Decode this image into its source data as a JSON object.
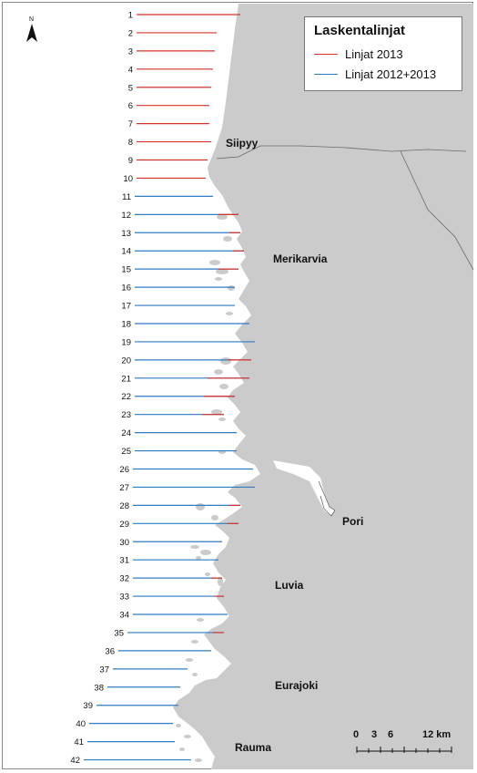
{
  "legend": {
    "title": "Laskentalinjat",
    "items": [
      {
        "label": "Linjat 2013",
        "color": "#d9342b"
      },
      {
        "label": "Linjat 2012+2013",
        "color": "#2f7bc4"
      }
    ]
  },
  "north_label": "N",
  "scale": {
    "ticks": [
      "0",
      "3",
      "6",
      "12 km"
    ]
  },
  "places": [
    {
      "name": "Siipyy"
    },
    {
      "name": "Merikarvia"
    },
    {
      "name": "Pori"
    },
    {
      "name": "Luvia"
    },
    {
      "name": "Eurajoki"
    },
    {
      "name": "Rauma"
    }
  ],
  "lines": [
    {
      "label": "1",
      "category": "2013"
    },
    {
      "label": "2",
      "category": "2013"
    },
    {
      "label": "3",
      "category": "2013"
    },
    {
      "label": "4",
      "category": "2013"
    },
    {
      "label": "5",
      "category": "2013"
    },
    {
      "label": "6",
      "category": "2013"
    },
    {
      "label": "7",
      "category": "2013"
    },
    {
      "label": "8",
      "category": "2013"
    },
    {
      "label": "9",
      "category": "2013"
    },
    {
      "label": "10",
      "category": "2013"
    },
    {
      "label": "11",
      "category": "2012+2013"
    },
    {
      "label": "12",
      "category": "2012+2013"
    },
    {
      "label": "13",
      "category": "2012+2013"
    },
    {
      "label": "14",
      "category": "2012+2013"
    },
    {
      "label": "15",
      "category": "2012+2013"
    },
    {
      "label": "16",
      "category": "2012+2013"
    },
    {
      "label": "17",
      "category": "2012+2013"
    },
    {
      "label": "18",
      "category": "2012+2013"
    },
    {
      "label": "19",
      "category": "2012+2013"
    },
    {
      "label": "20",
      "category": "2012+2013"
    },
    {
      "label": "21",
      "category": "2012+2013"
    },
    {
      "label": "22",
      "category": "2012+2013"
    },
    {
      "label": "23",
      "category": "2012+2013"
    },
    {
      "label": "24",
      "category": "2012+2013"
    },
    {
      "label": "25",
      "category": "2012+2013"
    },
    {
      "label": "26",
      "category": "2012+2013"
    },
    {
      "label": "27",
      "category": "2012+2013"
    },
    {
      "label": "28",
      "category": "2012+2013"
    },
    {
      "label": "29",
      "category": "2012+2013"
    },
    {
      "label": "30",
      "category": "2012+2013"
    },
    {
      "label": "31",
      "category": "2012+2013"
    },
    {
      "label": "32",
      "category": "2012+2013"
    },
    {
      "label": "33",
      "category": "2012+2013"
    },
    {
      "label": "34",
      "category": "2012+2013"
    },
    {
      "label": "35",
      "category": "2012+2013"
    },
    {
      "label": "36",
      "category": "2012+2013"
    },
    {
      "label": "37",
      "category": "2012+2013"
    },
    {
      "label": "38",
      "category": "2012+2013"
    },
    {
      "label": "39",
      "category": "2012+2013"
    },
    {
      "label": "40",
      "category": "2012+2013"
    },
    {
      "label": "41",
      "category": "2012+2013"
    },
    {
      "label": "42",
      "category": "2012+2013"
    }
  ],
  "colors": {
    "land": "#cbcbcb",
    "sea": "#ffffff",
    "border": "#6a6a6a"
  }
}
